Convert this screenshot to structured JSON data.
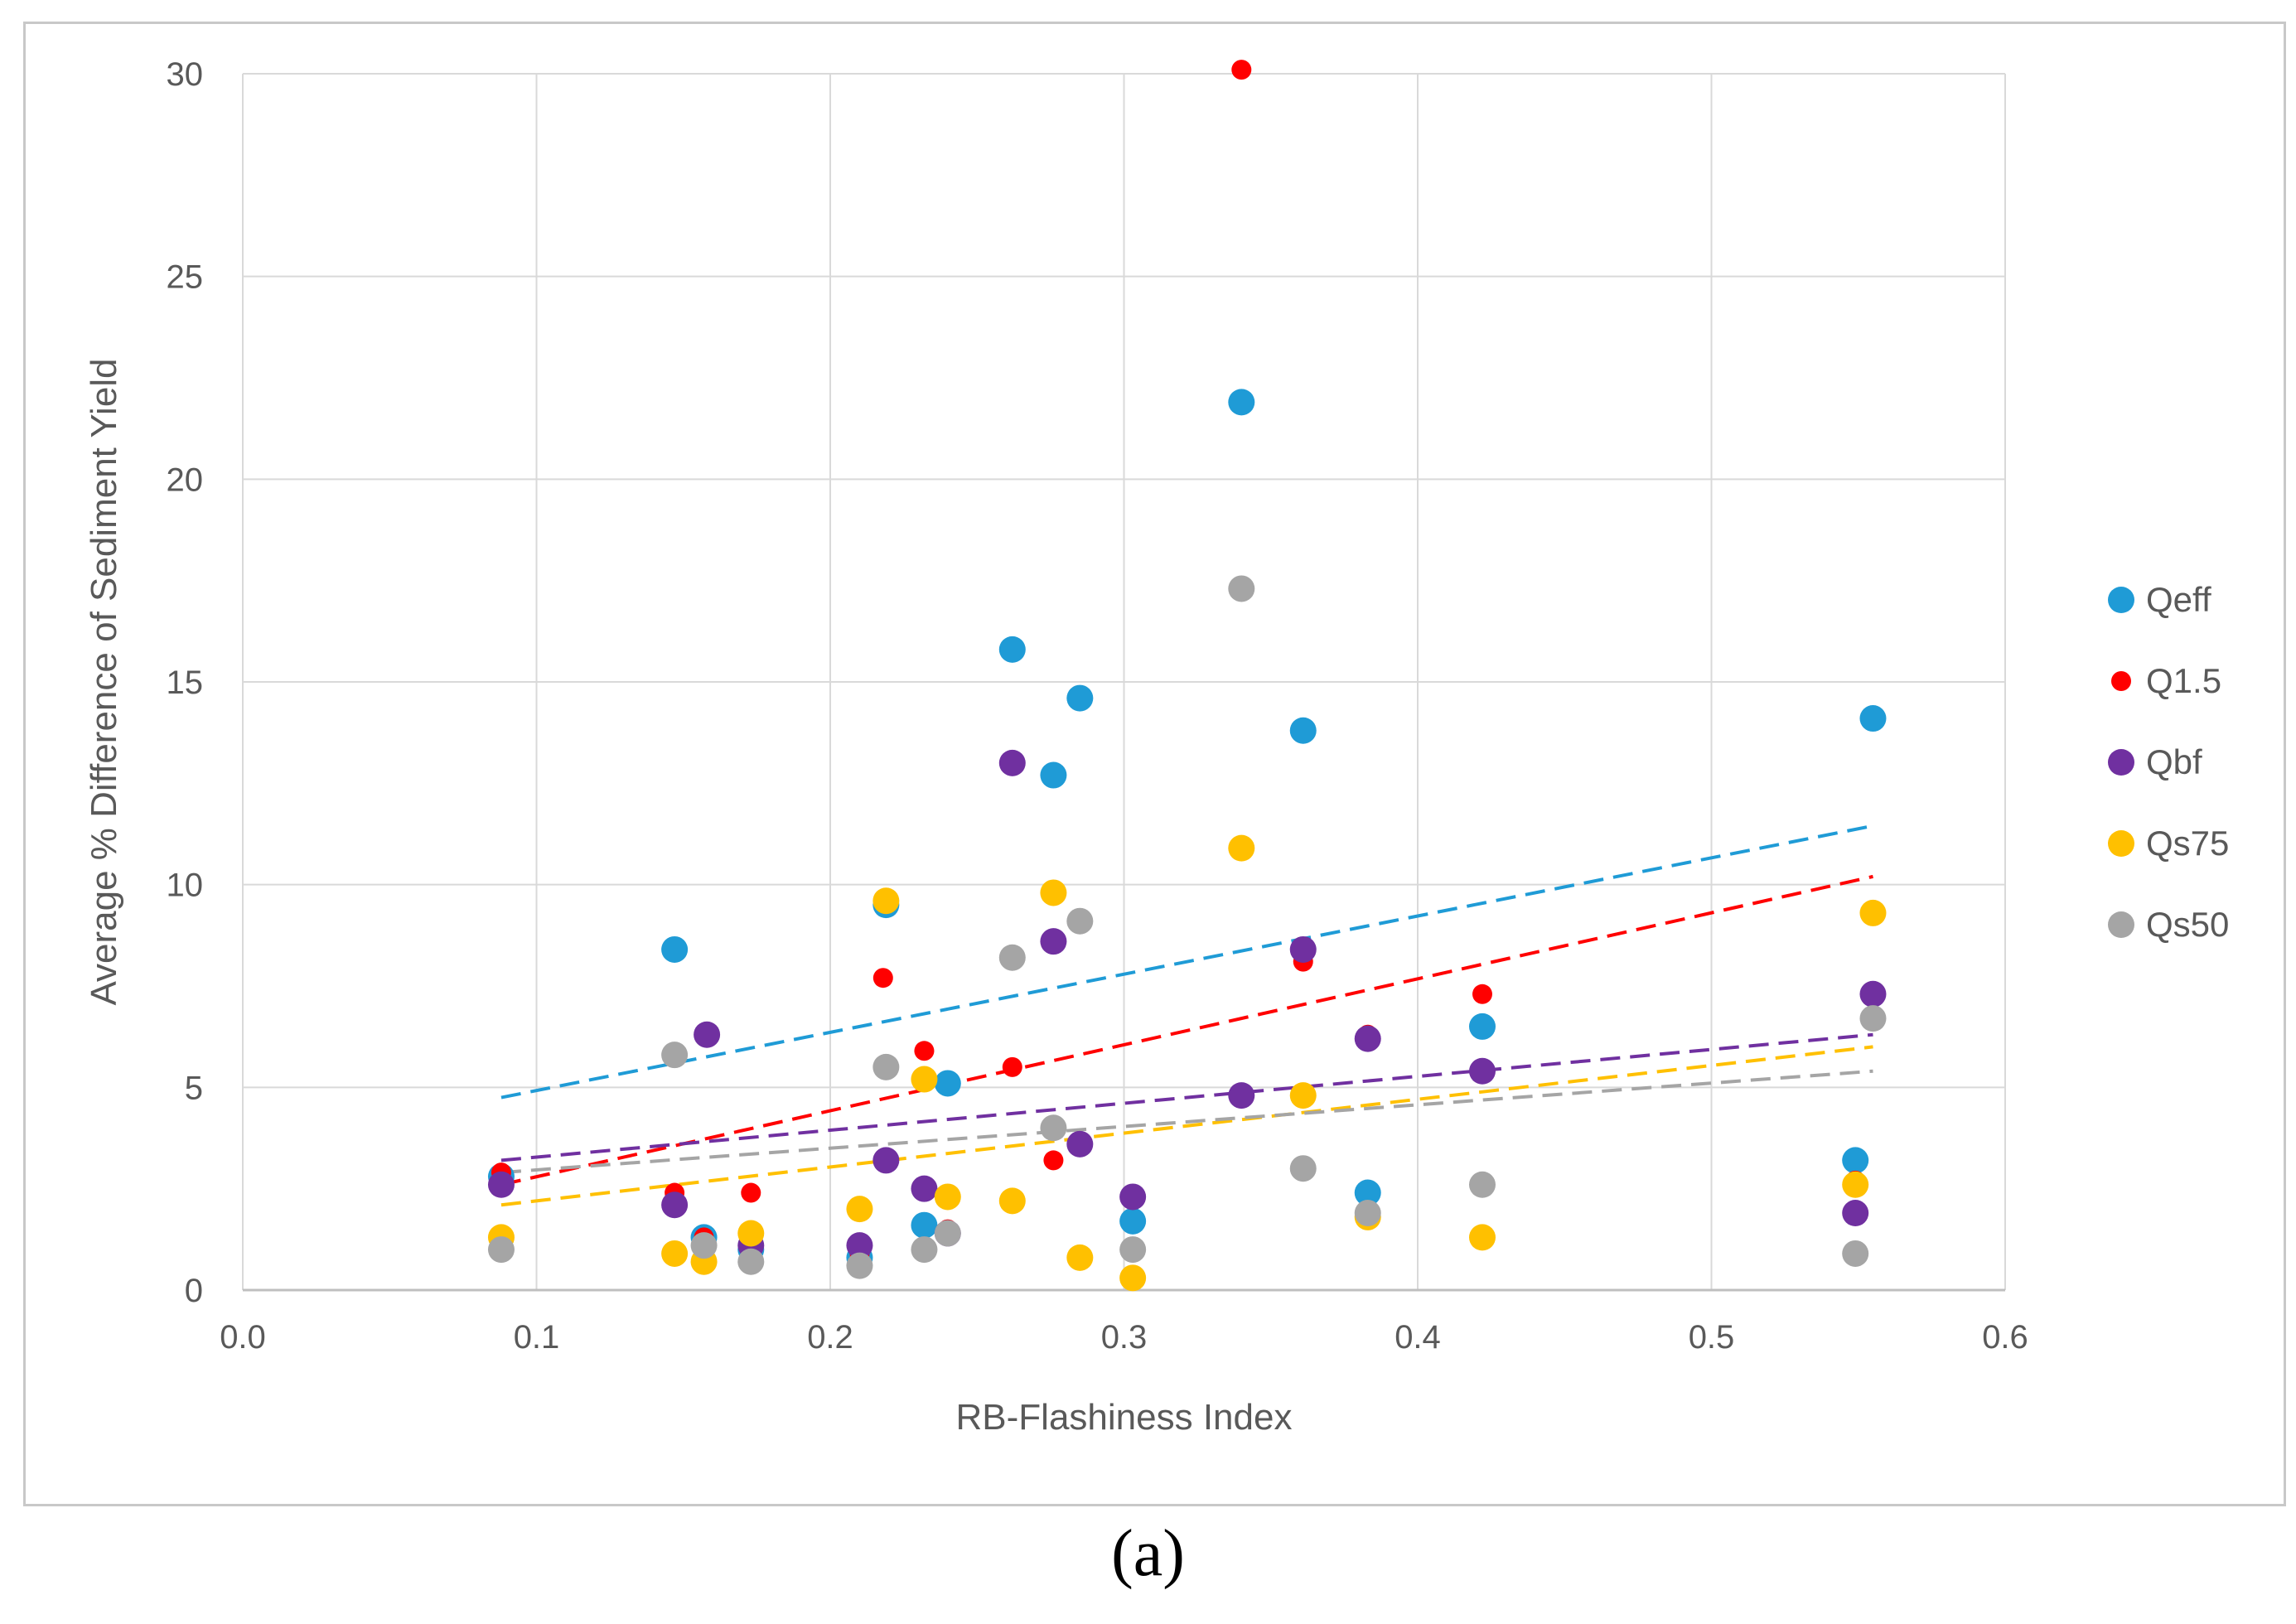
{
  "caption": "(a)",
  "chart_data": {
    "type": "scatter",
    "title": "",
    "xlabel": "RB-Flashiness Index",
    "ylabel": "Average % Difference of Sediment Yield",
    "xlim": [
      0.0,
      0.6
    ],
    "ylim": [
      0,
      30
    ],
    "xticks": [
      "0.0",
      "0.1",
      "0.2",
      "0.3",
      "0.4",
      "0.5",
      "0.6"
    ],
    "xtick_values": [
      0.0,
      0.1,
      0.2,
      0.3,
      0.4,
      0.5,
      0.6
    ],
    "yticks": [
      "0",
      "5",
      "10",
      "15",
      "20",
      "25",
      "30"
    ],
    "ytick_values": [
      0,
      5,
      10,
      15,
      20,
      25,
      30
    ],
    "grid": true,
    "legend_position": "right",
    "series": [
      {
        "name": "Qeff",
        "color": "#1f9bd6",
        "marker_size": "large",
        "x": [
          0.088,
          0.147,
          0.157,
          0.173,
          0.21,
          0.219,
          0.232,
          0.24,
          0.262,
          0.276,
          0.285,
          0.303,
          0.34,
          0.361,
          0.383,
          0.422,
          0.549,
          0.555
        ],
        "y": [
          2.8,
          8.4,
          1.3,
          1.0,
          0.8,
          9.5,
          1.6,
          5.1,
          15.8,
          12.7,
          14.6,
          1.7,
          21.9,
          13.8,
          2.4,
          6.5,
          3.2,
          14.1
        ],
        "trend": [
          [
            0.088,
            4.75
          ],
          [
            0.555,
            11.45
          ]
        ]
      },
      {
        "name": "Q1.5",
        "color": "#ff0000",
        "marker_size": "small",
        "x": [
          0.088,
          0.147,
          0.157,
          0.173,
          0.21,
          0.218,
          0.232,
          0.24,
          0.262,
          0.276,
          0.285,
          0.303,
          0.34,
          0.361,
          0.383,
          0.422,
          0.549,
          0.555
        ],
        "y": [
          2.9,
          2.4,
          1.3,
          2.4,
          0.9,
          7.7,
          5.9,
          1.5,
          5.5,
          3.2,
          3.6,
          2.3,
          30.1,
          8.1,
          6.3,
          7.3,
          2.7,
          7.3
        ],
        "trend": [
          [
            0.088,
            2.6
          ],
          [
            0.555,
            10.2
          ]
        ]
      },
      {
        "name": "Qbf",
        "color": "#7030a0",
        "marker_size": "large",
        "x": [
          0.088,
          0.147,
          0.158,
          0.173,
          0.21,
          0.219,
          0.232,
          0.24,
          0.262,
          0.276,
          0.285,
          0.303,
          0.34,
          0.361,
          0.383,
          0.422,
          0.549,
          0.555
        ],
        "y": [
          2.6,
          2.1,
          6.3,
          1.1,
          1.1,
          3.2,
          2.5,
          1.4,
          13.0,
          8.6,
          3.6,
          2.3,
          4.8,
          8.4,
          6.2,
          5.4,
          1.9,
          7.3
        ],
        "trend": [
          [
            0.088,
            3.2
          ],
          [
            0.555,
            6.3
          ]
        ]
      },
      {
        "name": "Qs75",
        "color": "#ffc000",
        "marker_size": "large",
        "x": [
          0.088,
          0.147,
          0.157,
          0.173,
          0.21,
          0.219,
          0.232,
          0.24,
          0.262,
          0.276,
          0.285,
          0.303,
          0.34,
          0.361,
          0.383,
          0.422,
          0.549,
          0.555
        ],
        "y": [
          1.3,
          0.9,
          0.7,
          1.4,
          2.0,
          9.6,
          5.2,
          2.3,
          2.2,
          9.8,
          0.8,
          0.3,
          10.9,
          4.8,
          1.8,
          1.3,
          2.6,
          9.3
        ],
        "trend": [
          [
            0.088,
            2.1
          ],
          [
            0.555,
            6.0
          ]
        ]
      },
      {
        "name": "Qs50",
        "color": "#a5a5a5",
        "marker_size": "large",
        "x": [
          0.088,
          0.147,
          0.157,
          0.173,
          0.21,
          0.219,
          0.232,
          0.24,
          0.262,
          0.276,
          0.285,
          0.303,
          0.34,
          0.361,
          0.383,
          0.422,
          0.549,
          0.555
        ],
        "y": [
          1.0,
          5.8,
          1.1,
          0.7,
          0.6,
          5.5,
          1.0,
          1.4,
          8.2,
          4.0,
          9.1,
          1.0,
          17.3,
          3.0,
          1.9,
          2.6,
          0.9,
          6.7
        ],
        "trend": [
          [
            0.088,
            2.9
          ],
          [
            0.555,
            5.4
          ]
        ]
      }
    ]
  }
}
